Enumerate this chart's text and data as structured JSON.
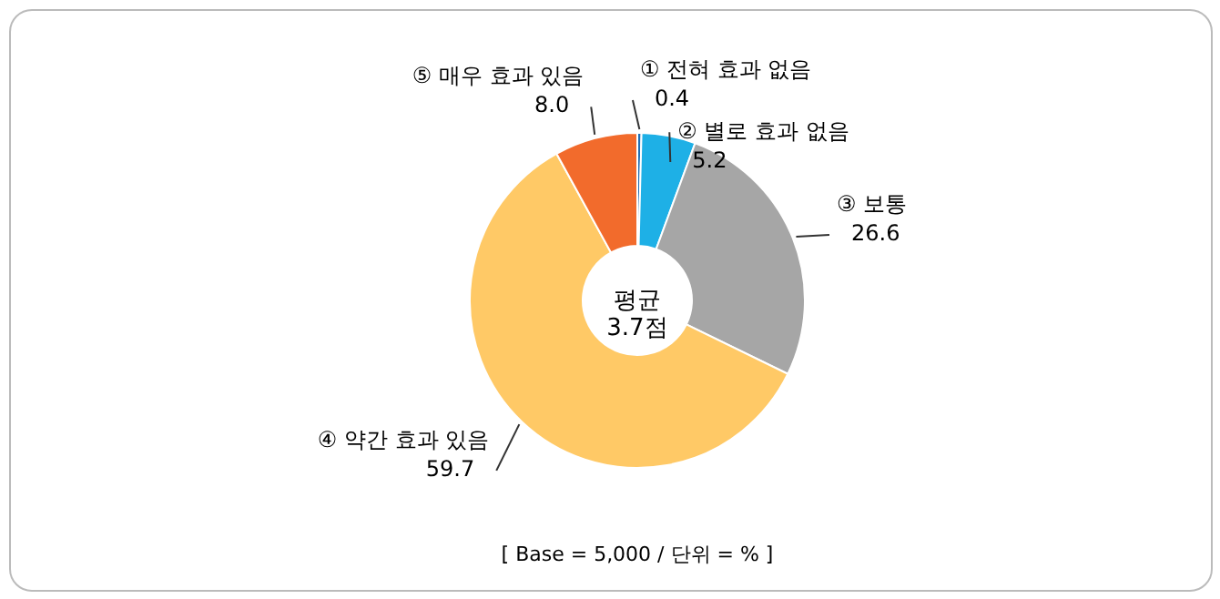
{
  "chart_data": {
    "type": "donut",
    "categories": [
      "① 전혀 효과 없음",
      "② 별로 효과 없음",
      "③ 보통",
      "④ 약간 효과 있음",
      "⑤ 매우 효과 있음"
    ],
    "values": [
      0.4,
      5.2,
      26.6,
      59.7,
      8.0
    ],
    "colors": [
      "#1f6fb5",
      "#1eb0e6",
      "#a6a6a6",
      "#ffc966",
      "#f26b2c"
    ],
    "value_labels": [
      "0.4",
      "5.2",
      "26.6",
      "59.7",
      "8.0"
    ],
    "annotations": [
      "평균\n3.7점",
      "[ Base = 5,000 / 단위 = % ]"
    ]
  }
}
